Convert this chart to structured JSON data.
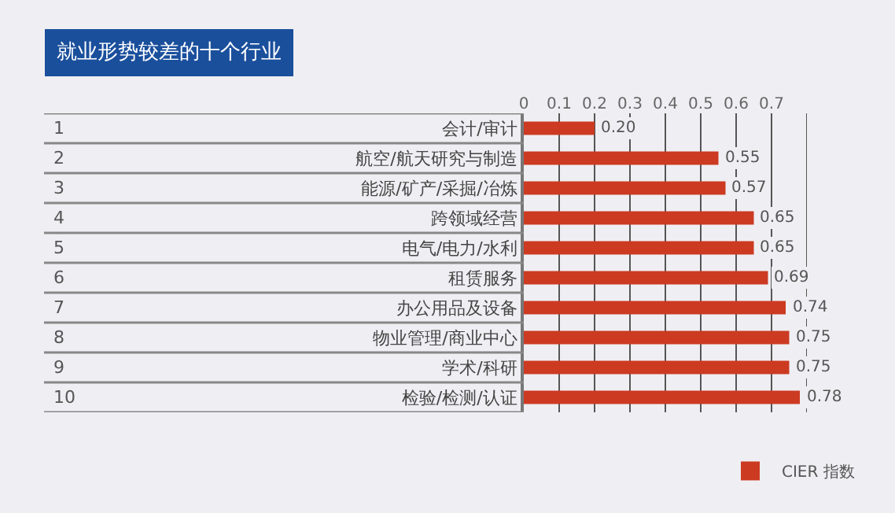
{
  "chart_data": {
    "type": "bar",
    "orientation": "horizontal",
    "title": "就业形势较差的十个行业",
    "categories": [
      "会计/审计",
      "航空/航天研究与制造",
      "能源/矿产/采掘/冶炼",
      "跨领域经营",
      "电气/电力/水利",
      "租赁服务",
      "办公用品及设备",
      "物业管理/商业中心",
      "学术/科研",
      "检验/检测/认证"
    ],
    "series": [
      {
        "name": "CIER 指数",
        "color": "#cc3a22",
        "values": [
          0.2,
          0.55,
          0.57,
          0.65,
          0.65,
          0.69,
          0.74,
          0.75,
          0.75,
          0.78
        ],
        "value_labels": [
          "0.20",
          "0.55",
          "0.57",
          "0.65",
          "0.65",
          "0.69",
          "0.74",
          "0.75",
          "0.75",
          "0.78"
        ]
      }
    ],
    "annotations": [
      "1",
      "2",
      "3",
      "4",
      "5",
      "6",
      "7",
      "8",
      "9",
      "10"
    ],
    "xlim": [
      0,
      0.8
    ],
    "xticks": [
      0,
      0.1,
      0.2,
      0.3,
      0.4,
      0.5,
      0.6,
      0.7,
      {
        "value": 0.8,
        "label": null
      }
    ],
    "grid": "x",
    "legend": "bottom right"
  }
}
